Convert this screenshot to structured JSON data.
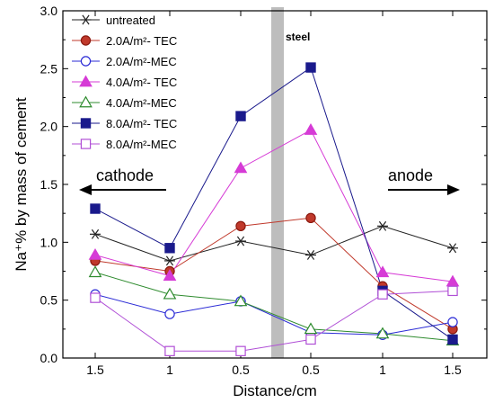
{
  "chart_data": {
    "type": "line",
    "xlabel": "Distance/cm",
    "ylabel": "Na⁺% by mass of cement",
    "ylim": [
      0,
      3.0
    ],
    "yticks": [
      "0.0",
      "0.5",
      "1.0",
      "1.5",
      "2.0",
      "2.5",
      "3.0"
    ],
    "categories": [
      "1.5",
      "1",
      "0.5",
      "0.5",
      "1",
      "1.5"
    ],
    "grid": false,
    "legend_position": "top-left",
    "annotations": {
      "steel": "steel",
      "cathode": "cathode",
      "anode": "anode"
    },
    "series": [
      {
        "name": "untreated",
        "color": "#222222",
        "marker": "asterisk",
        "values": [
          1.07,
          0.84,
          1.01,
          0.89,
          1.14,
          0.95
        ]
      },
      {
        "name": "2.0A/m²- TEC",
        "color": "#c0392b",
        "marker": "circle-filled",
        "values": [
          0.84,
          0.75,
          1.14,
          1.21,
          0.62,
          0.25
        ]
      },
      {
        "name": "2.0A/m²-MEC",
        "color": "#2b2bd6",
        "marker": "circle-open",
        "values": [
          0.55,
          0.38,
          0.49,
          0.22,
          0.2,
          0.31
        ]
      },
      {
        "name": "4.0A/m²- TEC",
        "color": "#d63bd6",
        "marker": "triangle-filled",
        "values": [
          0.89,
          0.71,
          1.64,
          1.97,
          0.74,
          0.66
        ]
      },
      {
        "name": "4.0A/m²-MEC",
        "color": "#2e8b2e",
        "marker": "triangle-open",
        "values": [
          0.74,
          0.55,
          0.49,
          0.25,
          0.21,
          0.15
        ]
      },
      {
        "name": "8.0A/m²- TEC",
        "color": "#1a1a8c",
        "marker": "square-filled",
        "values": [
          1.29,
          0.95,
          2.09,
          2.51,
          0.58,
          0.16
        ]
      },
      {
        "name": "8.0A/m²-MEC",
        "color": "#b04fd6",
        "marker": "square-open",
        "values": [
          0.52,
          0.06,
          0.06,
          0.16,
          0.55,
          0.58
        ]
      }
    ]
  }
}
